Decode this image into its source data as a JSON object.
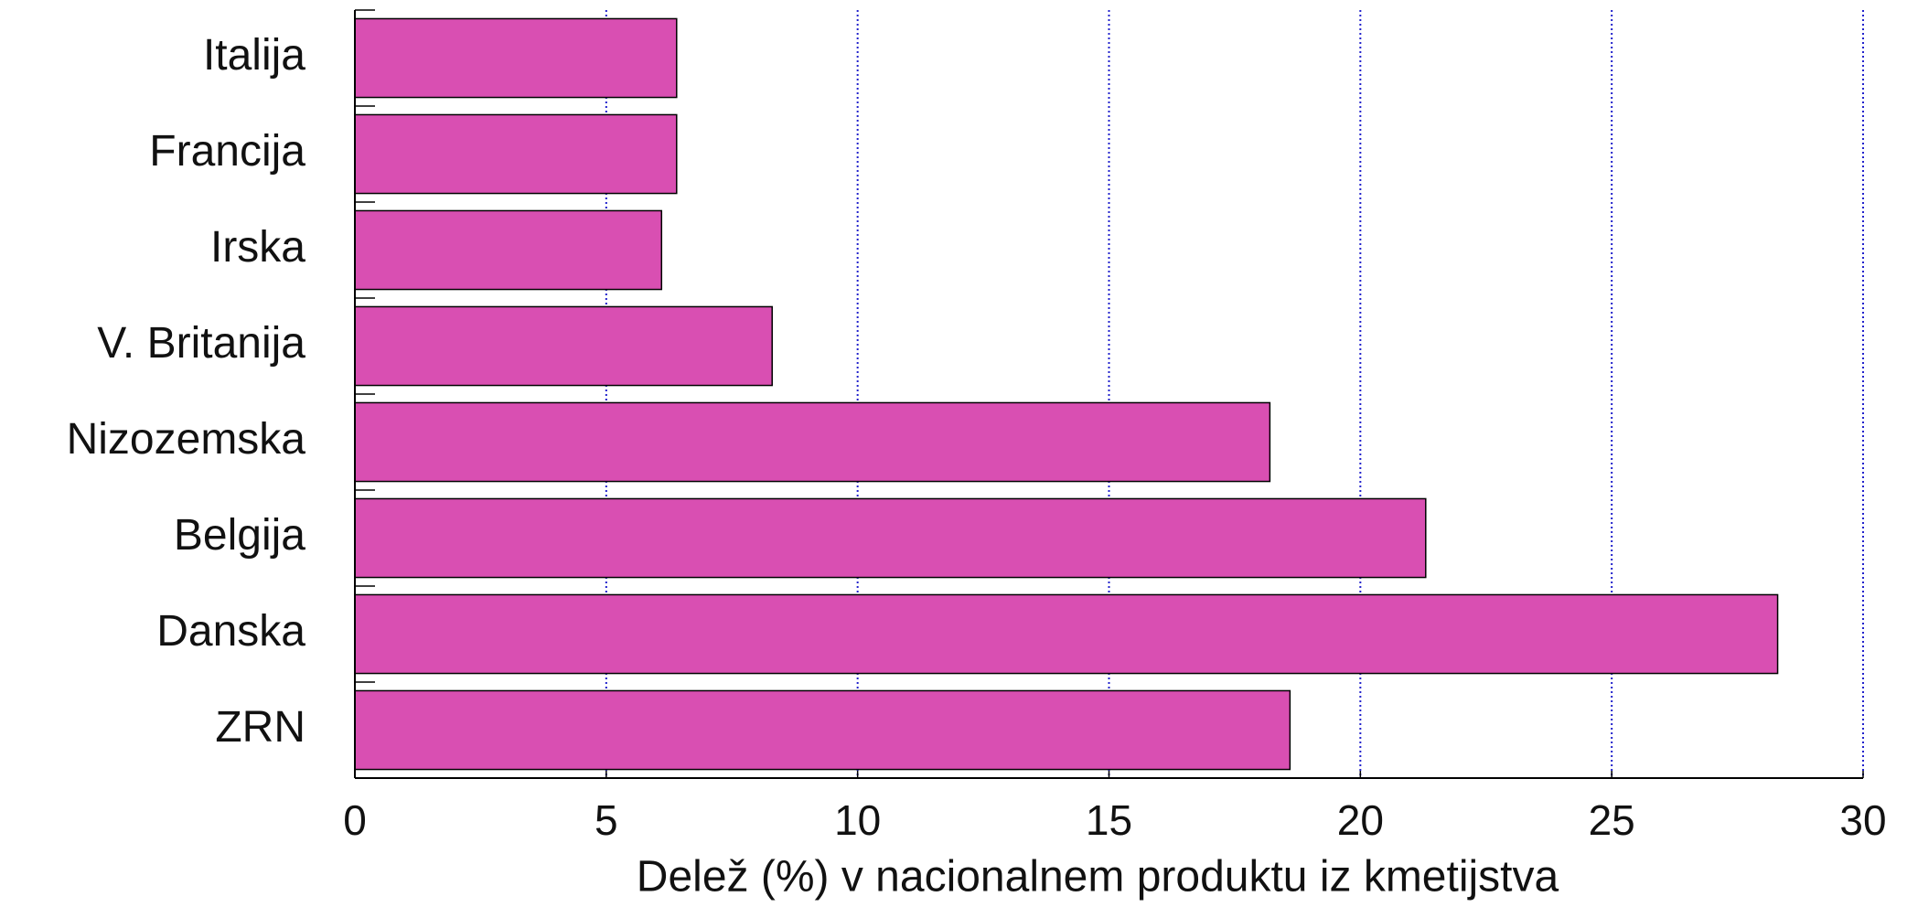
{
  "chart_data": {
    "type": "bar",
    "orientation": "horizontal",
    "categories": [
      "Italija",
      "Francija",
      "Irska",
      "V. Britanija",
      "Nizozemska",
      "Belgija",
      "Danska",
      "ZRN"
    ],
    "values": [
      6.4,
      6.4,
      6.1,
      8.3,
      18.2,
      21.3,
      28.3,
      18.6
    ],
    "color": "#d94fb2",
    "xlabel": "Delež  (%) v nacionalnem produktu iz kmetijstva",
    "xlim": [
      0,
      30
    ],
    "xticks": [
      0,
      5,
      10,
      15,
      20,
      25,
      30
    ],
    "grid": true,
    "grid_color": "#2222cc"
  }
}
